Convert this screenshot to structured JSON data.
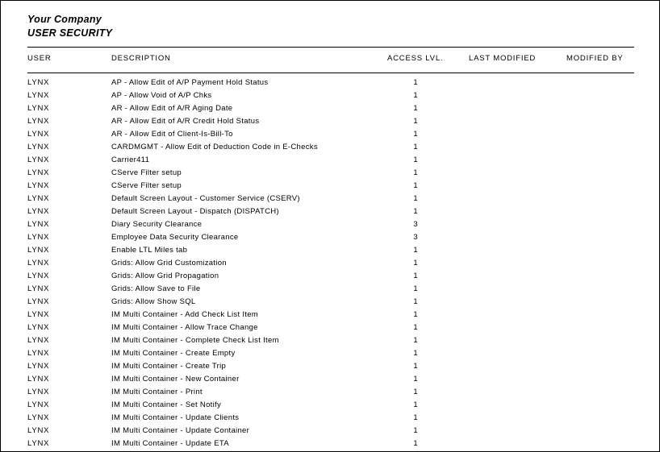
{
  "report": {
    "company": "Your Company",
    "title": "USER SECURITY"
  },
  "columns": {
    "user": "USER",
    "description": "DESCRIPTION",
    "access_level": "ACCESS LVL.",
    "last_modified": "LAST MODIFIED",
    "modified_by": "MODIFIED BY"
  },
  "rows": [
    {
      "user": "LYNX",
      "description": "AP - Allow Edit of A/P Payment Hold Status",
      "access_level": "1"
    },
    {
      "user": "LYNX",
      "description": "AP - Allow Void of A/P Chks",
      "access_level": "1"
    },
    {
      "user": "LYNX",
      "description": "AR - Allow Edit of A/R Aging Date",
      "access_level": "1"
    },
    {
      "user": "LYNX",
      "description": "AR - Allow Edit of A/R Credit Hold Status",
      "access_level": "1"
    },
    {
      "user": "LYNX",
      "description": "AR - Allow Edit of Client-Is-Bill-To",
      "access_level": "1"
    },
    {
      "user": "LYNX",
      "description": "CARDMGMT - Allow Edit of Deduction Code in E-Checks",
      "access_level": "1"
    },
    {
      "user": "LYNX",
      "description": "Carrier411",
      "access_level": "1"
    },
    {
      "user": "LYNX",
      "description": "CServe Filter setup",
      "access_level": "1"
    },
    {
      "user": "LYNX",
      "description": "CServe Filter setup",
      "access_level": "1"
    },
    {
      "user": "LYNX",
      "description": "Default Screen Layout - Customer Service (CSERV)",
      "access_level": "1"
    },
    {
      "user": "LYNX",
      "description": "Default Screen Layout - Dispatch (DISPATCH)",
      "access_level": "1"
    },
    {
      "user": "LYNX",
      "description": "Diary Security Clearance",
      "access_level": "3"
    },
    {
      "user": "LYNX",
      "description": "Employee Data Security Clearance",
      "access_level": "3"
    },
    {
      "user": "LYNX",
      "description": "Enable LTL Miles tab",
      "access_level": "1"
    },
    {
      "user": "LYNX",
      "description": "Grids: Allow Grid Customization",
      "access_level": "1"
    },
    {
      "user": "LYNX",
      "description": "Grids: Allow Grid Propagation",
      "access_level": "1"
    },
    {
      "user": "LYNX",
      "description": "Grids: Allow Save to File",
      "access_level": "1"
    },
    {
      "user": "LYNX",
      "description": "Grids: Allow Show SQL",
      "access_level": "1"
    },
    {
      "user": "LYNX",
      "description": "IM Multi Container - Add Check List Item",
      "access_level": "1"
    },
    {
      "user": "LYNX",
      "description": "IM Multi Container - Allow Trace Change",
      "access_level": "1"
    },
    {
      "user": "LYNX",
      "description": "IM Multi Container - Complete Check List Item",
      "access_level": "1"
    },
    {
      "user": "LYNX",
      "description": "IM Multi Container - Create Empty",
      "access_level": "1"
    },
    {
      "user": "LYNX",
      "description": "IM Multi Container - Create Trip",
      "access_level": "1"
    },
    {
      "user": "LYNX",
      "description": "IM Multi Container - New Container",
      "access_level": "1"
    },
    {
      "user": "LYNX",
      "description": "IM Multi Container - Print",
      "access_level": "1"
    },
    {
      "user": "LYNX",
      "description": "IM Multi Container - Set Notify",
      "access_level": "1"
    },
    {
      "user": "LYNX",
      "description": "IM Multi Container - Update Clients",
      "access_level": "1"
    },
    {
      "user": "LYNX",
      "description": "IM Multi Container - Update Container",
      "access_level": "1"
    },
    {
      "user": "LYNX",
      "description": "IM Multi Container - Update ETA",
      "access_level": "1"
    }
  ]
}
